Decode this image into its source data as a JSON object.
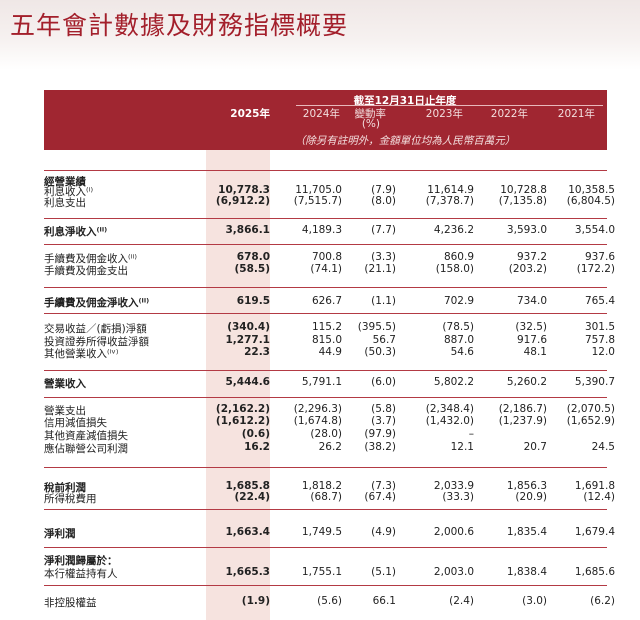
{
  "title": "五年會計數據及財務指標概要",
  "header": {
    "date_span": "截至12月31日止年度",
    "years": [
      "2025年",
      "2024年",
      "變動率",
      "2023年",
      "2022年",
      "2021年"
    ],
    "pct": "(%)",
    "note": "（除另有註明外，金額單位均為人民幣百萬元）"
  },
  "rows": [
    {
      "label": "經營業績",
      "values": [
        "",
        "",
        "",
        "",
        "",
        ""
      ]
    },
    {
      "label": "利息收入⁽ⁱ⁾",
      "values": [
        "10,778.3",
        "11,705.0",
        "(7.9)",
        "11,614.9",
        "10,728.8",
        "10,358.5"
      ]
    },
    {
      "label": "利息支出",
      "values": [
        "(6,912.2)",
        "(7,515.7)",
        "(8.0)",
        "(7,378.7)",
        "(7,135.8)",
        "(6,804.5)"
      ]
    },
    {
      "label": "利息淨收入⁽ⁱⁱ⁾",
      "values": [
        "3,866.1",
        "4,189.3",
        "(7.7)",
        "4,236.2",
        "3,593.0",
        "3,554.0"
      ]
    },
    {
      "label": "手續費及佣金收入⁽ⁱⁱ⁾",
      "values": [
        "678.0",
        "700.8",
        "(3.3)",
        "860.9",
        "937.2",
        "937.6"
      ]
    },
    {
      "label": "手續費及佣金支出",
      "values": [
        "(58.5)",
        "(74.1)",
        "(21.1)",
        "(158.0)",
        "(203.2)",
        "(172.2)"
      ]
    },
    {
      "label": "手續費及佣金淨收入⁽ⁱⁱ⁾",
      "values": [
        "619.5",
        "626.7",
        "(1.1)",
        "702.9",
        "734.0",
        "765.4"
      ]
    },
    {
      "label": "交易收益／(虧損)淨額",
      "values": [
        "(340.4)",
        "115.2",
        "(395.5)",
        "(78.5)",
        "(32.5)",
        "301.5"
      ]
    },
    {
      "label": "投資證券所得收益淨額",
      "values": [
        "1,277.1",
        "815.0",
        "56.7",
        "887.0",
        "917.6",
        "757.8"
      ]
    },
    {
      "label": "其他營業收入⁽ⁱᵛ⁾",
      "values": [
        "22.3",
        "44.9",
        "(50.3)",
        "54.6",
        "48.1",
        "12.0"
      ]
    },
    {
      "label": "營業收入",
      "values": [
        "5,444.6",
        "5,791.1",
        "(6.0)",
        "5,802.2",
        "5,260.2",
        "5,390.7"
      ]
    },
    {
      "label": "營業支出",
      "values": [
        "(2,162.2)",
        "(2,296.3)",
        "(5.8)",
        "(2,348.4)",
        "(2,186.7)",
        "(2,070.5)"
      ]
    },
    {
      "label": "信用減值損失",
      "values": [
        "(1,612.2)",
        "(1,674.8)",
        "(3.7)",
        "(1,432.0)",
        "(1,237.9)",
        "(1,652.9)"
      ]
    },
    {
      "label": "其他資產減值損失",
      "values": [
        "(0.6)",
        "(28.0)",
        "(97.9)",
        "–",
        "",
        ""
      ]
    },
    {
      "label": "應佔聯營公司利潤",
      "values": [
        "16.2",
        "26.2",
        "(38.2)",
        "12.1",
        "20.7",
        "24.5"
      ]
    },
    {
      "label": "稅前利潤",
      "values": [
        "1,685.8",
        "1,818.2",
        "(7.3)",
        "2,033.9",
        "1,856.3",
        "1,691.8"
      ]
    },
    {
      "label": "所得稅費用",
      "values": [
        "(22.4)",
        "(68.7)",
        "(67.4)",
        "(33.3)",
        "(20.9)",
        "(12.4)"
      ]
    },
    {
      "label": "淨利潤",
      "values": [
        "1,663.4",
        "1,749.5",
        "(4.9)",
        "2,000.6",
        "1,835.4",
        "1,679.4"
      ]
    },
    {
      "label": "淨利潤歸屬於：",
      "values": [
        "",
        "",
        "",
        "",
        "",
        ""
      ]
    },
    {
      "label": "本行權益持有人",
      "values": [
        "1,665.3",
        "1,755.1",
        "(5.1)",
        "2,003.0",
        "1,838.4",
        "1,685.6"
      ]
    },
    {
      "label": "非控股權益",
      "values": [
        "(1.9)",
        "(5.6)",
        "66.1",
        "(2.4)",
        "(3.0)",
        "(6.2)"
      ]
    }
  ]
}
